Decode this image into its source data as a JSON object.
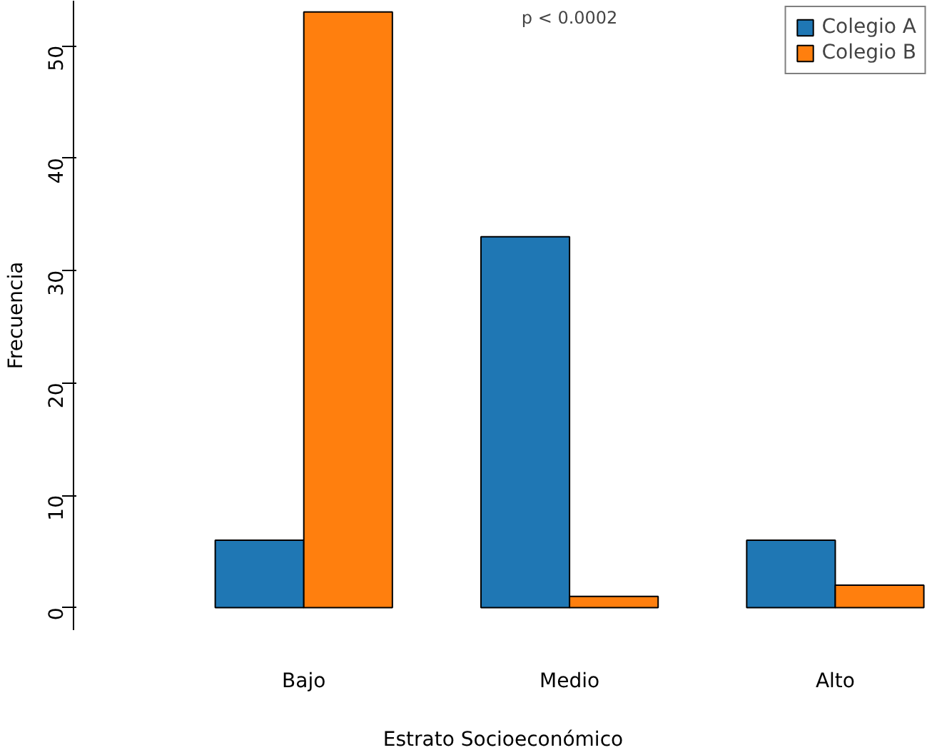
{
  "chart_data": {
    "type": "bar",
    "xlabel": "Estrato Socioeconómico",
    "ylabel": "Frecuencia",
    "categories": [
      "Bajo",
      "Medio",
      "Alto"
    ],
    "series": [
      {
        "name": "Colegio A",
        "color": "#1f77b4",
        "values": [
          6,
          33,
          6
        ]
      },
      {
        "name": "Colegio B",
        "color": "#ff7f0e",
        "values": [
          53,
          1,
          2
        ]
      }
    ],
    "ylim": [
      -2,
      54
    ],
    "yticks": [
      0,
      10,
      20,
      30,
      40,
      50
    ],
    "legend": "top right",
    "annotations": [
      "p < 0.0002"
    ]
  }
}
